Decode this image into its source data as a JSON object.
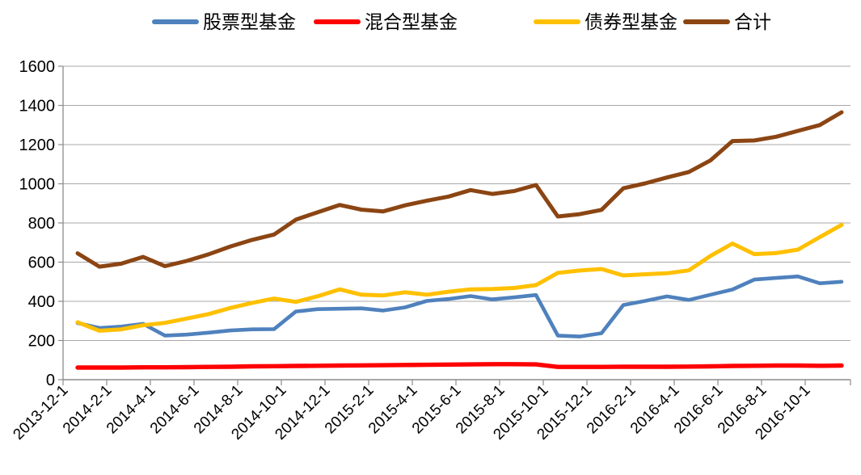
{
  "chart_data": {
    "type": "line",
    "title": "",
    "xlabel": "",
    "ylabel": "",
    "ylim": [
      0,
      1600
    ],
    "y_tick_step": 200,
    "y_tick_labels": [
      "0",
      "200",
      "400",
      "600",
      "800",
      "1000",
      "1200",
      "1400",
      "1600"
    ],
    "x_tick_labels": [
      "2013-12-1",
      "2014-2-1",
      "2014-4-1",
      "2014-6-1",
      "2014-8-1",
      "2014-10-1",
      "2014-12-1",
      "2015-2-1",
      "2015-4-1",
      "2015-6-1",
      "2015-8-1",
      "2015-10-1",
      "2015-12-1",
      "2016-2-1",
      "2016-4-1",
      "2016-6-1",
      "2016-8-1",
      "2016-10-1"
    ],
    "months": [
      "2013-12-1",
      "2014-1-1",
      "2014-2-1",
      "2014-3-1",
      "2014-4-1",
      "2014-5-1",
      "2014-6-1",
      "2014-7-1",
      "2014-8-1",
      "2014-9-1",
      "2014-10-1",
      "2014-11-1",
      "2014-12-1",
      "2015-1-1",
      "2015-2-1",
      "2015-3-1",
      "2015-4-1",
      "2015-5-1",
      "2015-6-1",
      "2015-7-1",
      "2015-8-1",
      "2015-9-1",
      "2015-10-1",
      "2015-11-1",
      "2015-12-1",
      "2016-1-1",
      "2016-2-1",
      "2016-3-1",
      "2016-4-1",
      "2016-5-1",
      "2016-6-1",
      "2016-7-1",
      "2016-8-1",
      "2016-9-1",
      "2016-10-1",
      "2016-11-1"
    ],
    "grid": true,
    "legend_position": "top",
    "axis_color": "#8C8C8C",
    "grid_color": "#A8A8A8",
    "series": [
      {
        "name": "股票型基金",
        "color": "#4F81BD",
        "values": [
          289,
          264,
          271,
          285,
          225,
          230,
          240,
          251,
          257,
          258,
          348,
          360,
          362,
          364,
          353,
          369,
          402,
          412,
          427,
          410,
          420,
          432,
          225,
          220,
          237,
          381,
          402,
          425,
          407,
          434,
          460,
          511,
          519,
          527,
          492,
          500
        ]
      },
      {
        "name": "混合型基金",
        "color": "#FF0000",
        "values": [
          62,
          62,
          62,
          63,
          63,
          64,
          65,
          66,
          68,
          69,
          70,
          71,
          72,
          73,
          74,
          75,
          76,
          77,
          78,
          79,
          79,
          78,
          65,
          65,
          65,
          66,
          66,
          66,
          67,
          68,
          70,
          71,
          72,
          72,
          71,
          72
        ]
      },
      {
        "name": "债券型基金",
        "color": "#FFC000",
        "values": [
          293,
          250,
          257,
          278,
          290,
          312,
          335,
          366,
          392,
          414,
          397,
          426,
          461,
          434,
          430,
          446,
          434,
          449,
          461,
          463,
          468,
          483,
          545,
          557,
          565,
          532,
          538,
          543,
          558,
          632,
          695,
          641,
          646,
          664,
          728,
          790
        ]
      },
      {
        "name": "合计",
        "color": "#8B4513",
        "values": [
          645,
          577,
          592,
          627,
          580,
          606,
          640,
          680,
          714,
          741,
          817,
          855,
          892,
          868,
          859,
          890,
          914,
          935,
          968,
          948,
          963,
          994,
          833,
          845,
          867,
          977,
          1002,
          1032,
          1060,
          1120,
          1218,
          1221,
          1240,
          1270,
          1300,
          1365
        ]
      }
    ]
  },
  "legend": {
    "items": [
      {
        "label": "股票型基金"
      },
      {
        "label": "混合型基金"
      },
      {
        "label": "债券型基金"
      },
      {
        "label": "合计"
      }
    ]
  }
}
